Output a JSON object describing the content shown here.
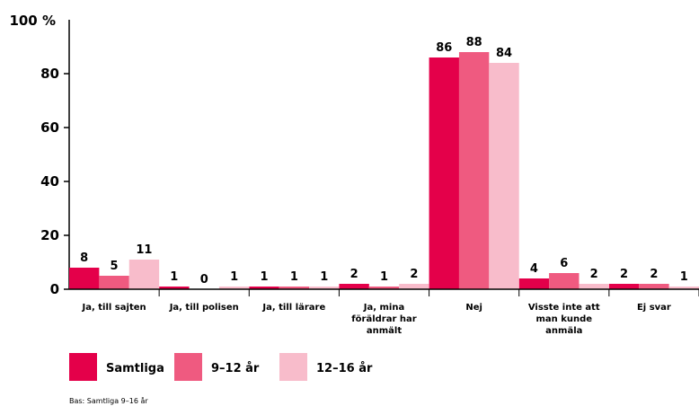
{
  "chart_data": {
    "type": "bar",
    "y_axis_unit_label": "100 %",
    "yticks": [
      "0",
      "20",
      "40",
      "60",
      "80"
    ],
    "ylim": [
      0,
      100
    ],
    "grid": false,
    "legend_position": "bottom-left",
    "categories": [
      [
        "Ja, till sajten"
      ],
      [
        "Ja, till polisen"
      ],
      [
        "Ja, till lärare"
      ],
      [
        "Ja, mina",
        "föräldrar har",
        "anmält"
      ],
      [
        "Nej"
      ],
      [
        "Visste inte att",
        "man kunde",
        "anmäla"
      ],
      [
        "Ej svar"
      ]
    ],
    "series": [
      {
        "name": "Samtliga",
        "color": "#e4004a",
        "values": [
          8,
          1,
          1,
          2,
          86,
          4,
          2
        ]
      },
      {
        "name": "9–12 år",
        "color": "#ef5a80",
        "values": [
          5,
          0,
          1,
          1,
          88,
          6,
          2
        ]
      },
      {
        "name": "12–16 år",
        "color": "#f8bccb",
        "values": [
          11,
          1,
          1,
          2,
          84,
          2,
          1
        ]
      }
    ],
    "note": "Bas: Samtliga 9–16 år"
  }
}
